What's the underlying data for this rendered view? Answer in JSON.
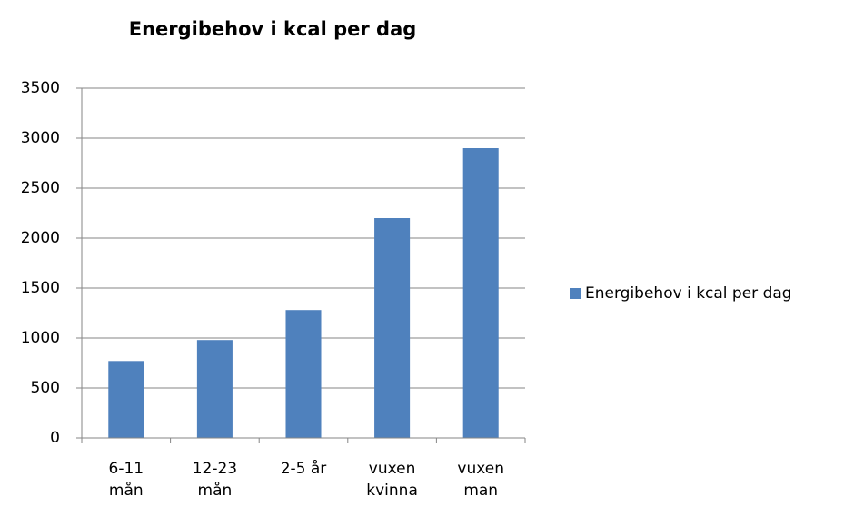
{
  "chart_data": {
    "type": "bar",
    "title": "Energibehov i kcal per dag",
    "categories": [
      "6-11\nmån",
      "12-23\nmån",
      "2-5 år",
      "vuxen\nkvinna",
      "vuxen\nman"
    ],
    "series": [
      {
        "name": "Energibehov i kcal per dag",
        "color": "#4f81bd",
        "values": [
          770,
          980,
          1280,
          2200,
          2900
        ]
      }
    ],
    "ylim": [
      0,
      3500
    ],
    "yticks": [
      0,
      500,
      1000,
      1500,
      2000,
      2500,
      3000,
      3500
    ],
    "grid": true,
    "legend": "right"
  }
}
